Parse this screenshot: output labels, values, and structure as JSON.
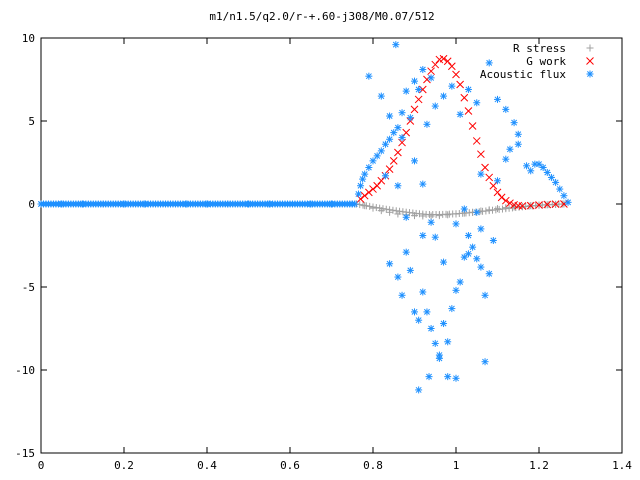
{
  "chart_data": {
    "type": "scatter",
    "title": "m1/n1.5/q2.0/r-+.60-j308/M0.07/512",
    "xlabel": "",
    "ylabel": "",
    "xlim": [
      0,
      1.4
    ],
    "ylim": [
      -15,
      10
    ],
    "x_ticks": [
      "0",
      "0.2",
      "0.4",
      "0.6",
      "0.8",
      "1",
      "1.2",
      "1.4"
    ],
    "y_ticks": [
      "10",
      "5",
      "0",
      "-5",
      "-10",
      "-15"
    ],
    "grid": false,
    "legend_position": "top-right",
    "series": [
      {
        "name": "R stress",
        "marker": "plus",
        "color": "#a0a0a0",
        "points": [
          [
            0.0,
            0
          ],
          [
            0.1,
            0
          ],
          [
            0.2,
            0
          ],
          [
            0.3,
            0
          ],
          [
            0.4,
            0
          ],
          [
            0.5,
            0
          ],
          [
            0.6,
            0
          ],
          [
            0.7,
            0
          ],
          [
            0.76,
            0
          ],
          [
            0.78,
            -0.1
          ],
          [
            0.8,
            -0.25
          ],
          [
            0.82,
            -0.4
          ],
          [
            0.84,
            -0.5
          ],
          [
            0.86,
            -0.6
          ],
          [
            0.88,
            -0.65
          ],
          [
            0.9,
            -0.7
          ],
          [
            0.92,
            -0.72
          ],
          [
            0.94,
            -0.72
          ],
          [
            0.96,
            -0.7
          ],
          [
            0.98,
            -0.65
          ],
          [
            1.0,
            -0.6
          ],
          [
            1.02,
            -0.55
          ],
          [
            1.04,
            -0.5
          ],
          [
            1.06,
            -0.42
          ],
          [
            1.08,
            -0.35
          ],
          [
            1.1,
            -0.28
          ],
          [
            1.12,
            -0.22
          ],
          [
            1.14,
            -0.18
          ],
          [
            1.16,
            -0.14
          ],
          [
            1.18,
            -0.1
          ],
          [
            1.2,
            -0.07
          ],
          [
            1.22,
            -0.05
          ],
          [
            1.24,
            -0.03
          ],
          [
            1.26,
            0
          ]
        ]
      },
      {
        "name": "G work",
        "marker": "cross",
        "color": "#ff0000",
        "points": [
          [
            0.77,
            0.3
          ],
          [
            0.78,
            0.5
          ],
          [
            0.79,
            0.7
          ],
          [
            0.8,
            0.9
          ],
          [
            0.81,
            1.1
          ],
          [
            0.82,
            1.4
          ],
          [
            0.83,
            1.7
          ],
          [
            0.84,
            2.1
          ],
          [
            0.85,
            2.6
          ],
          [
            0.86,
            3.1
          ],
          [
            0.87,
            3.7
          ],
          [
            0.88,
            4.3
          ],
          [
            0.89,
            5.0
          ],
          [
            0.9,
            5.7
          ],
          [
            0.91,
            6.3
          ],
          [
            0.92,
            6.9
          ],
          [
            0.93,
            7.5
          ],
          [
            0.94,
            8.0
          ],
          [
            0.95,
            8.4
          ],
          [
            0.96,
            8.7
          ],
          [
            0.97,
            8.75
          ],
          [
            0.98,
            8.6
          ],
          [
            0.99,
            8.3
          ],
          [
            1.0,
            7.8
          ],
          [
            1.01,
            7.2
          ],
          [
            1.02,
            6.4
          ],
          [
            1.03,
            5.6
          ],
          [
            1.04,
            4.7
          ],
          [
            1.05,
            3.8
          ],
          [
            1.06,
            3.0
          ],
          [
            1.07,
            2.2
          ],
          [
            1.08,
            1.6
          ],
          [
            1.09,
            1.1
          ],
          [
            1.1,
            0.7
          ],
          [
            1.11,
            0.4
          ],
          [
            1.12,
            0.2
          ],
          [
            1.13,
            0.05
          ],
          [
            1.14,
            -0.05
          ],
          [
            1.15,
            -0.1
          ],
          [
            1.16,
            -0.12
          ],
          [
            1.18,
            -0.1
          ],
          [
            1.2,
            -0.06
          ],
          [
            1.22,
            -0.03
          ],
          [
            1.24,
            -0.01
          ],
          [
            1.26,
            0
          ]
        ]
      },
      {
        "name": "Acoustic flux",
        "marker": "star",
        "color": "#1e90ff",
        "points": [
          [
            0.0,
            0
          ],
          [
            0.05,
            0
          ],
          [
            0.1,
            0
          ],
          [
            0.15,
            0
          ],
          [
            0.2,
            0
          ],
          [
            0.25,
            0
          ],
          [
            0.3,
            0
          ],
          [
            0.35,
            0
          ],
          [
            0.4,
            0
          ],
          [
            0.45,
            0
          ],
          [
            0.5,
            0
          ],
          [
            0.55,
            0
          ],
          [
            0.6,
            0
          ],
          [
            0.65,
            0
          ],
          [
            0.7,
            0
          ],
          [
            0.75,
            0
          ],
          [
            0.765,
            0.6
          ],
          [
            0.77,
            1.1
          ],
          [
            0.775,
            1.5
          ],
          [
            0.78,
            1.8
          ],
          [
            0.79,
            2.2
          ],
          [
            0.8,
            2.6
          ],
          [
            0.81,
            2.9
          ],
          [
            0.82,
            3.2
          ],
          [
            0.83,
            3.6
          ],
          [
            0.84,
            3.9
          ],
          [
            0.85,
            4.3
          ],
          [
            0.86,
            4.6
          ],
          [
            0.855,
            9.6
          ],
          [
            0.88,
            6.8
          ],
          [
            0.87,
            5.5
          ],
          [
            0.9,
            7.4
          ],
          [
            0.91,
            6.9
          ],
          [
            0.89,
            5.2
          ],
          [
            0.92,
            8.1
          ],
          [
            0.93,
            4.8
          ],
          [
            0.94,
            7.6
          ],
          [
            0.95,
            5.9
          ],
          [
            0.97,
            6.5
          ],
          [
            0.99,
            7.1
          ],
          [
            1.01,
            5.4
          ],
          [
            1.03,
            6.9
          ],
          [
            1.05,
            6.1
          ],
          [
            1.08,
            8.5
          ],
          [
            1.1,
            6.3
          ],
          [
            1.12,
            5.7
          ],
          [
            1.14,
            4.9
          ],
          [
            1.15,
            4.2
          ],
          [
            0.79,
            7.7
          ],
          [
            0.82,
            6.5
          ],
          [
            0.84,
            5.3
          ],
          [
            0.87,
            4.0
          ],
          [
            0.83,
            1.7
          ],
          [
            0.86,
            1.1
          ],
          [
            0.9,
            2.6
          ],
          [
            0.92,
            1.2
          ],
          [
            1.06,
            1.8
          ],
          [
            1.1,
            1.4
          ],
          [
            1.12,
            2.7
          ],
          [
            1.13,
            3.3
          ],
          [
            1.15,
            3.6
          ],
          [
            1.17,
            2.3
          ],
          [
            1.18,
            2.0
          ],
          [
            1.19,
            2.4
          ],
          [
            1.2,
            2.4
          ],
          [
            1.21,
            2.2
          ],
          [
            1.22,
            1.9
          ],
          [
            1.23,
            1.6
          ],
          [
            1.24,
            1.3
          ],
          [
            1.25,
            0.9
          ],
          [
            1.26,
            0.5
          ],
          [
            1.27,
            0.1
          ],
          [
            0.84,
            -3.6
          ],
          [
            0.87,
            -5.5
          ],
          [
            0.86,
            -4.4
          ],
          [
            0.89,
            -4.0
          ],
          [
            0.9,
            -6.5
          ],
          [
            0.91,
            -7.0
          ],
          [
            0.92,
            -5.3
          ],
          [
            0.93,
            -6.5
          ],
          [
            0.94,
            -7.5
          ],
          [
            0.95,
            -8.4
          ],
          [
            0.96,
            -9.3
          ],
          [
            0.97,
            -7.2
          ],
          [
            0.98,
            -8.3
          ],
          [
            0.99,
            -6.3
          ],
          [
            1.0,
            -5.2
          ],
          [
            1.01,
            -4.7
          ],
          [
            1.02,
            -3.2
          ],
          [
            1.03,
            -1.9
          ],
          [
            1.04,
            -2.6
          ],
          [
            1.05,
            -3.3
          ],
          [
            1.06,
            -3.8
          ],
          [
            1.07,
            -5.5
          ],
          [
            1.08,
            -4.2
          ],
          [
            1.09,
            -2.2
          ],
          [
            0.91,
            -11.2
          ],
          [
            0.935,
            -10.4
          ],
          [
            0.96,
            -9.1
          ],
          [
            0.98,
            -10.4
          ],
          [
            1.0,
            -10.5
          ],
          [
            1.07,
            -9.5
          ],
          [
            0.88,
            -2.9
          ],
          [
            0.92,
            -1.9
          ],
          [
            0.95,
            -2.0
          ],
          [
            0.97,
            -3.5
          ],
          [
            1.0,
            -1.2
          ],
          [
            1.03,
            -3.0
          ],
          [
            1.06,
            -1.5
          ],
          [
            0.88,
            -0.8
          ],
          [
            0.94,
            -1.1
          ],
          [
            1.02,
            -0.3
          ],
          [
            1.05,
            -0.5
          ]
        ]
      }
    ]
  }
}
